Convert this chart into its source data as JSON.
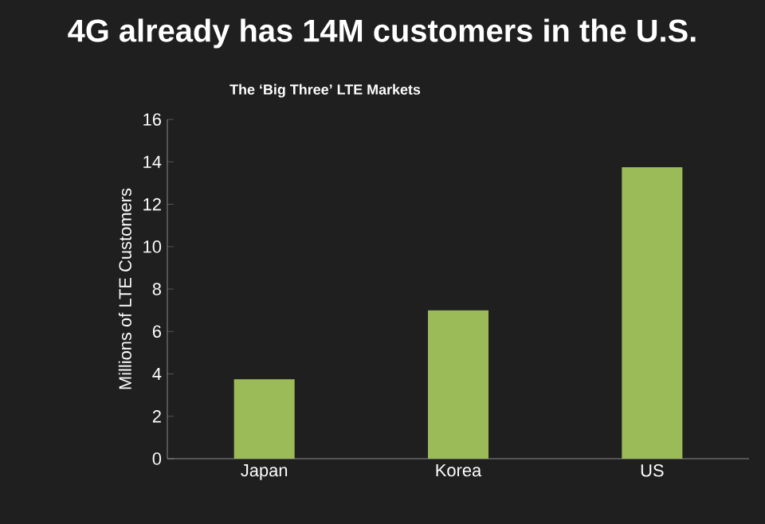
{
  "chart_data": {
    "type": "bar",
    "title": "4G already has 14M customers in the U.S.",
    "subtitle": "The ‘Big Three’ LTE Markets",
    "ylabel": "Millions of LTE Customers",
    "categories": [
      "Japan",
      "Korea",
      "US"
    ],
    "values": [
      3.75,
      7.0,
      13.75
    ],
    "color": "#9bbb59",
    "ylim": [
      0,
      16
    ],
    "yticks": [
      0,
      2,
      4,
      6,
      8,
      10,
      12,
      14,
      16
    ],
    "grid": false
  }
}
